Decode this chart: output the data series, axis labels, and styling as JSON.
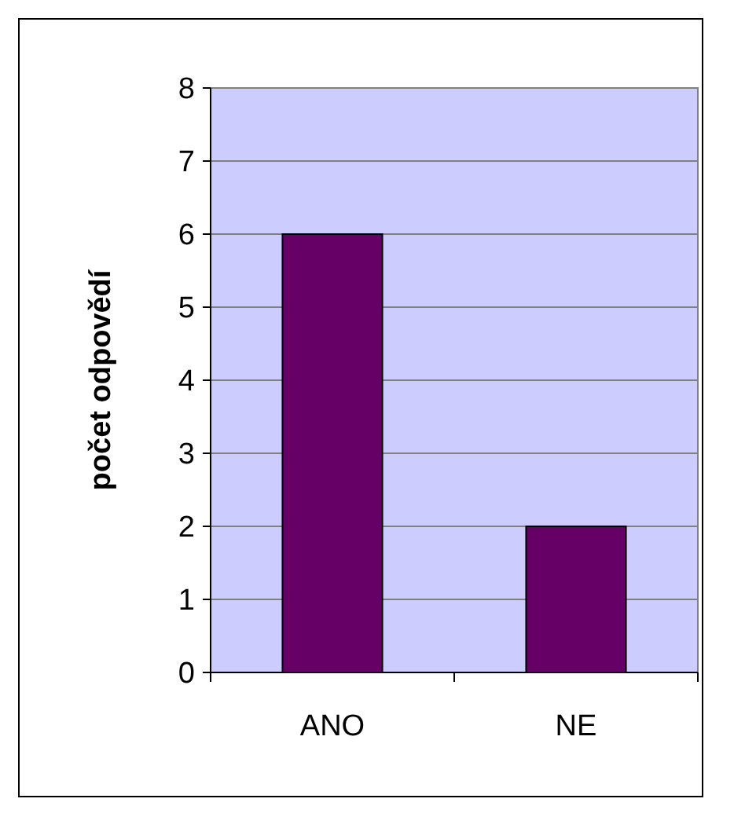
{
  "chart_data": {
    "type": "bar",
    "ylabel": "počet odpovědí",
    "categories": [
      "ANO",
      "NE"
    ],
    "values": [
      6,
      2
    ],
    "color": "#660066",
    "ylim": [
      0,
      8
    ],
    "yticks": [
      0,
      1,
      2,
      3,
      4,
      5,
      6,
      7,
      8
    ],
    "grid": "y"
  }
}
